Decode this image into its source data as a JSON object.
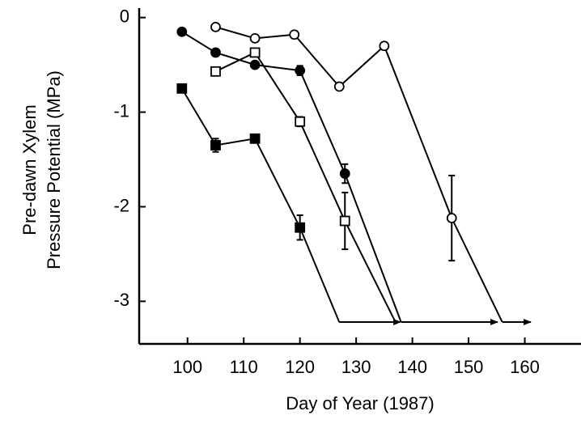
{
  "chart_data": {
    "type": "line",
    "xlabel": "Day of Year (1987)",
    "ylabel": [
      "Pre-dawn Xylem",
      "Pressure Potential (MPa)"
    ],
    "xlim": [
      91.4,
      170
    ],
    "xticks": [
      100,
      110,
      120,
      130,
      140,
      150,
      160
    ],
    "ylim": [
      -3.45,
      0.1
    ],
    "yticks": [
      0,
      -1,
      -2,
      -3
    ],
    "series": [
      {
        "marker": "circle",
        "filled": false,
        "color": "#000000",
        "x": [
          105,
          112,
          119,
          127,
          135,
          147,
          156
        ],
        "values": [
          -0.1,
          -0.22,
          -0.18,
          -0.73,
          -0.3,
          -2.12,
          -3.22
        ],
        "errors": [
          null,
          null,
          null,
          null,
          null,
          0.45,
          null
        ]
      },
      {
        "marker": "circle",
        "filled": true,
        "color": "#000000",
        "x": [
          99,
          105,
          112,
          120,
          128,
          138
        ],
        "values": [
          -0.15,
          -0.37,
          -0.5,
          -0.56,
          -1.65,
          -3.22
        ],
        "errors": [
          null,
          null,
          null,
          0.05,
          0.1,
          null
        ]
      },
      {
        "marker": "square",
        "filled": false,
        "color": "#000000",
        "x": [
          105,
          112,
          120,
          128,
          137
        ],
        "values": [
          -0.57,
          -0.37,
          -1.1,
          -2.15,
          -3.22
        ],
        "errors": [
          null,
          null,
          0.05,
          0.3,
          null
        ]
      },
      {
        "marker": "square",
        "filled": true,
        "color": "#000000",
        "x": [
          99,
          105,
          112,
          120,
          127
        ],
        "values": [
          -0.75,
          -1.35,
          -1.28,
          -2.22,
          -3.22
        ],
        "errors": [
          null,
          0.07,
          null,
          0.13,
          null
        ]
      }
    ]
  }
}
